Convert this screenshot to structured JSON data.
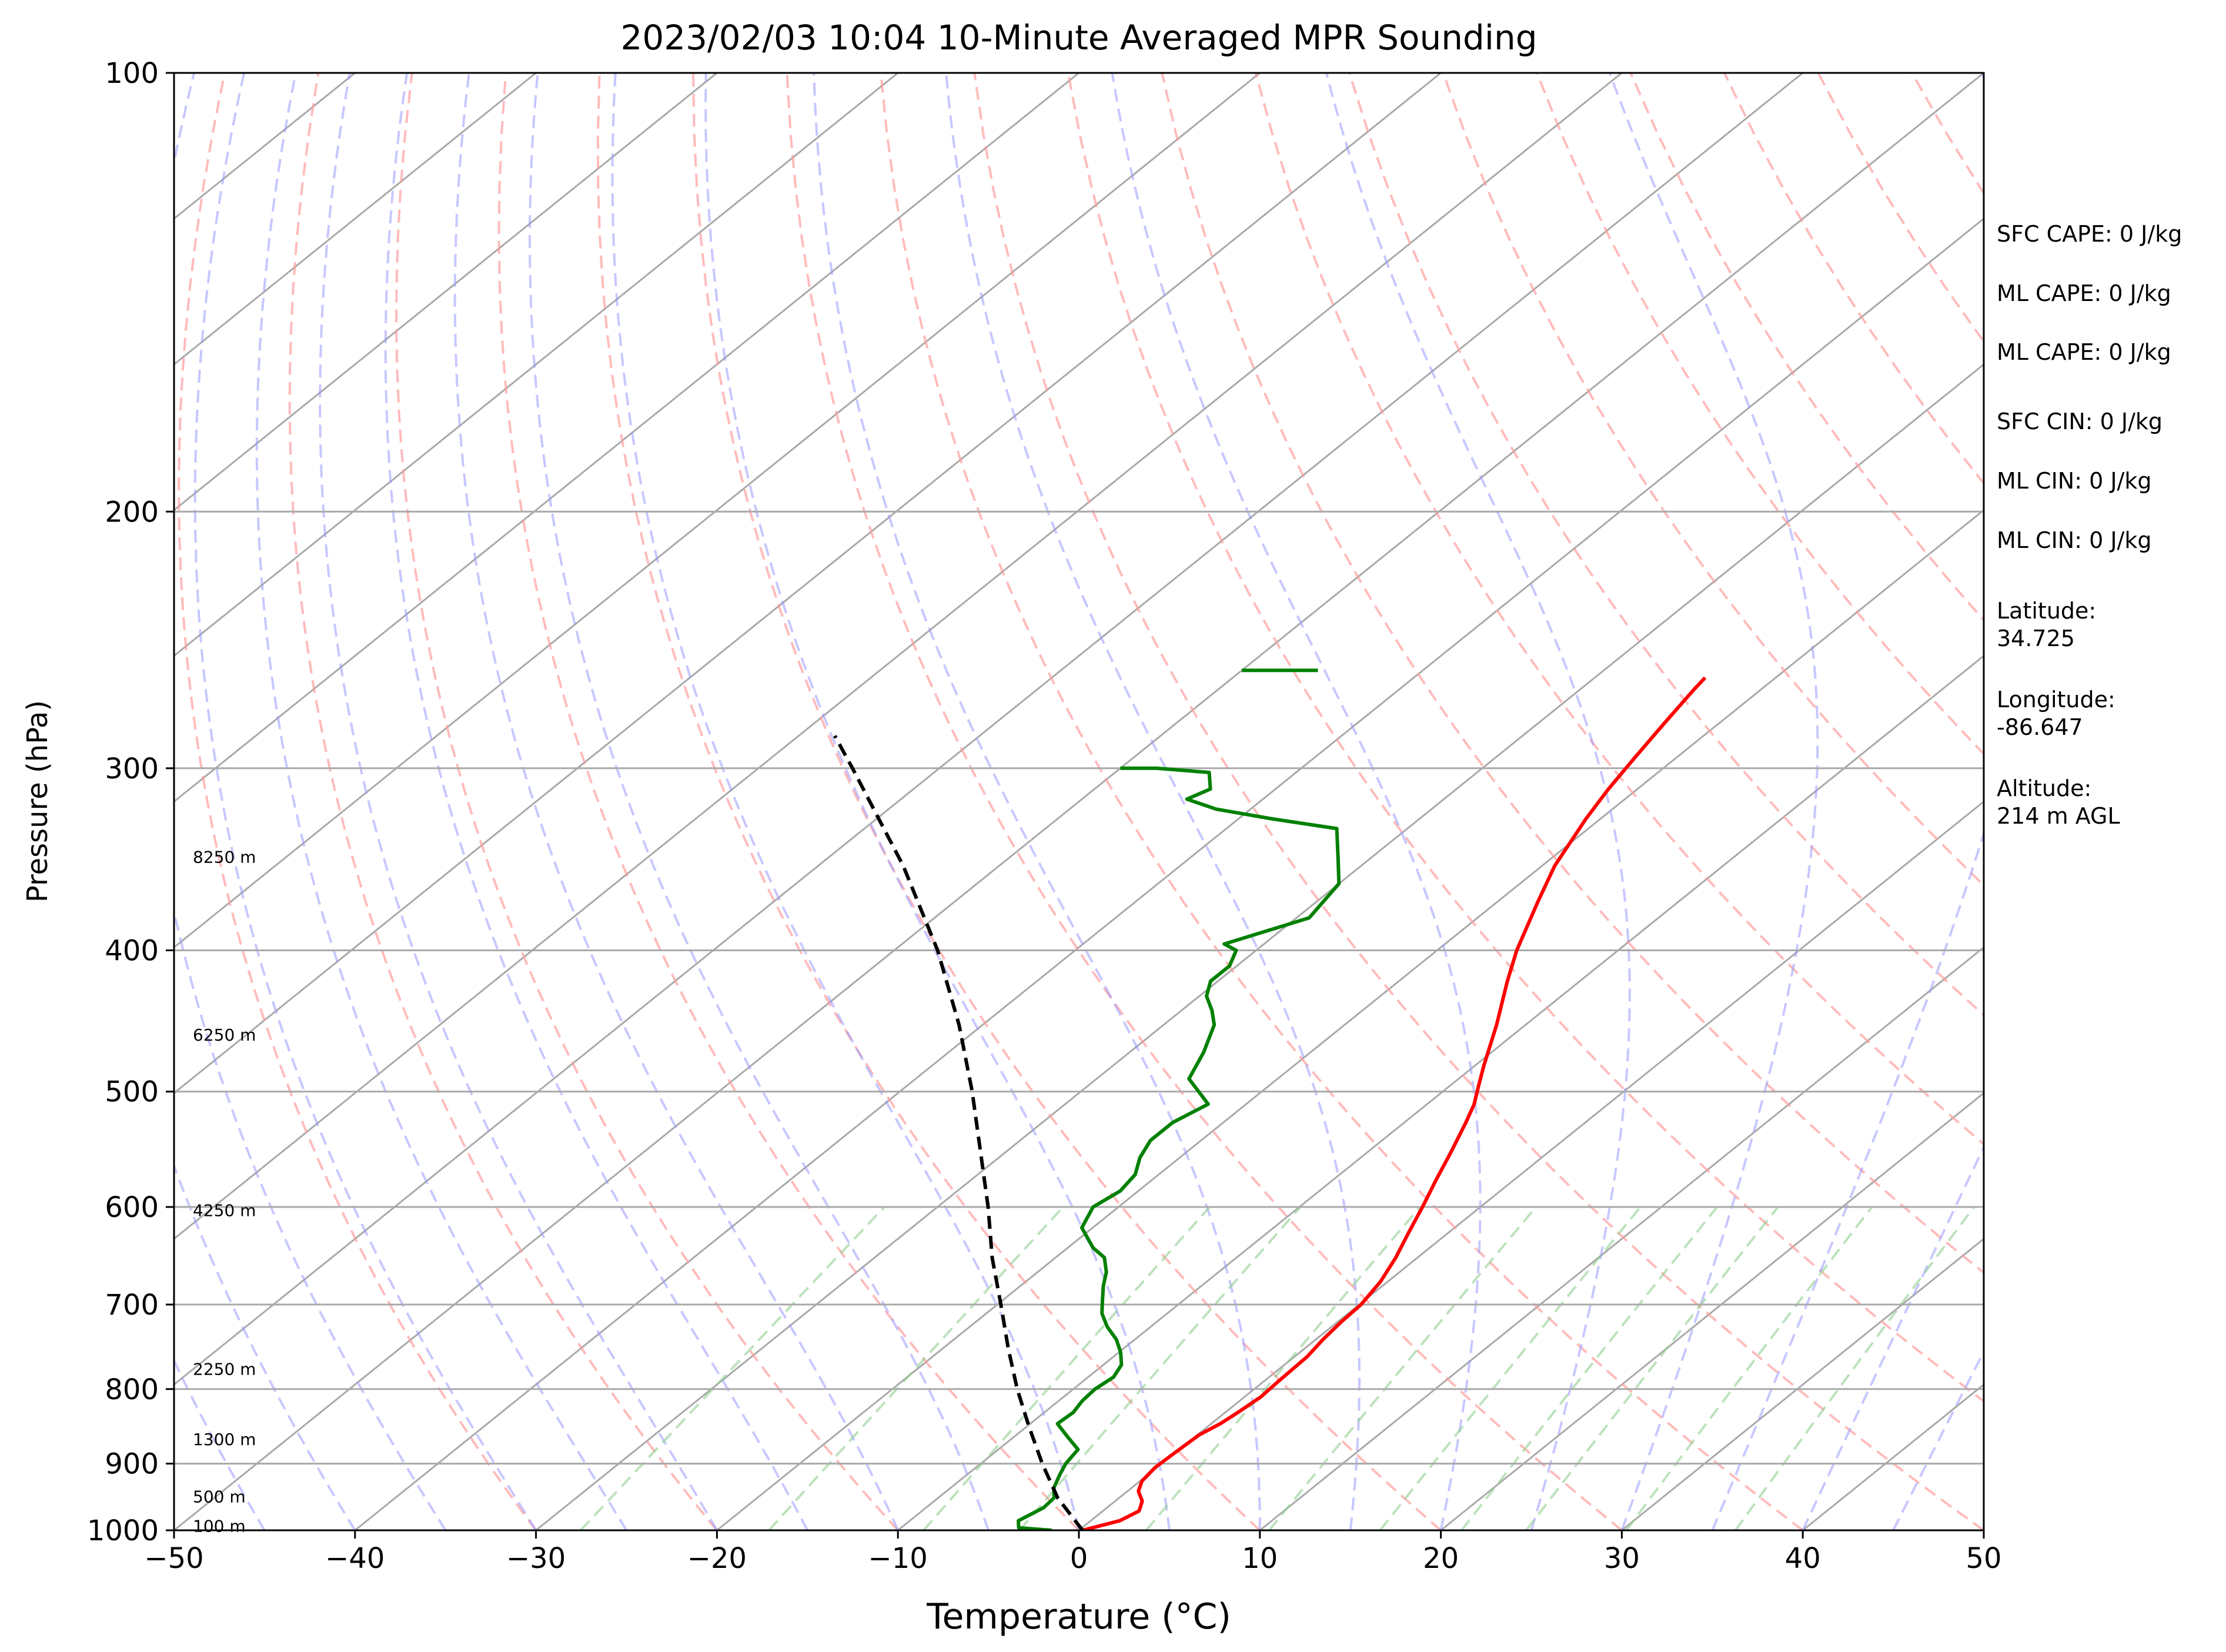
{
  "chart_data": {
    "type": "line",
    "subtype": "skew-T log-p sounding",
    "title": "2023/02/03 10:04 10-Minute Averaged MPR Sounding",
    "xlabel": "Temperature (°C)",
    "ylabel": "Pressure (hPa)",
    "xlim": [
      -50,
      50
    ],
    "ylim": [
      1000,
      100
    ],
    "yscale": "log",
    "grid": true,
    "x_ticks": [
      -50,
      -40,
      -30,
      -20,
      -10,
      0,
      10,
      20,
      30,
      40,
      50
    ],
    "x_tick_labels": [
      "−50",
      "−40",
      "−30",
      "−20",
      "−10",
      "0",
      "10",
      "20",
      "30",
      "40",
      "50"
    ],
    "y_ticks": [
      1000,
      900,
      800,
      700,
      600,
      500,
      400,
      300,
      200,
      100
    ],
    "y_tick_labels": [
      "1000",
      "900",
      "800",
      "700",
      "600",
      "500",
      "400",
      "300",
      "200",
      "100"
    ],
    "series": [
      {
        "role": "temperature",
        "color": "#ff0000",
        "points": [
          [
            1000,
            0.2
          ],
          [
            985,
            1.6
          ],
          [
            970,
            2.0
          ],
          [
            955,
            1.5
          ],
          [
            940,
            0.6
          ],
          [
            925,
            0.1
          ],
          [
            905,
            -0.1
          ],
          [
            880,
            0.0
          ],
          [
            860,
            0.1
          ],
          [
            845,
            0.5
          ],
          [
            830,
            0.7
          ],
          [
            810,
            0.9
          ],
          [
            790,
            0.8
          ],
          [
            760,
            0.7
          ],
          [
            740,
            0.4
          ],
          [
            720,
            0.2
          ],
          [
            700,
            0.1
          ],
          [
            675,
            -0.4
          ],
          [
            650,
            -1.2
          ],
          [
            625,
            -2.2
          ],
          [
            600,
            -3.2
          ],
          [
            575,
            -4.3
          ],
          [
            550,
            -5.4
          ],
          [
            525,
            -6.6
          ],
          [
            510,
            -7.4
          ],
          [
            500,
            -8.1
          ],
          [
            480,
            -9.5
          ],
          [
            450,
            -11.6
          ],
          [
            420,
            -14.0
          ],
          [
            400,
            -15.6
          ],
          [
            370,
            -17.8
          ],
          [
            350,
            -19.3
          ],
          [
            325,
            -20.8
          ],
          [
            310,
            -21.6
          ],
          [
            295,
            -22.3
          ],
          [
            280,
            -23.0
          ],
          [
            265,
            -23.7
          ],
          [
            260,
            -23.9
          ]
        ]
      },
      {
        "role": "dewpoint",
        "color": "#008000",
        "points": [
          [
            1000,
            -1.5
          ],
          [
            996,
            -3.5
          ],
          [
            985,
            -4.0
          ],
          [
            965,
            -3.5
          ],
          [
            950,
            -3.6
          ],
          [
            935,
            -4.3
          ],
          [
            915,
            -4.9
          ],
          [
            900,
            -5.3
          ],
          [
            880,
            -5.6
          ],
          [
            862,
            -7.1
          ],
          [
            845,
            -8.5
          ],
          [
            830,
            -8.4
          ],
          [
            815,
            -8.7
          ],
          [
            800,
            -8.8
          ],
          [
            785,
            -8.6
          ],
          [
            770,
            -9.0
          ],
          [
            755,
            -9.9
          ],
          [
            740,
            -11.0
          ],
          [
            725,
            -12.4
          ],
          [
            710,
            -13.6
          ],
          [
            700,
            -14.2
          ],
          [
            680,
            -15.4
          ],
          [
            665,
            -16.2
          ],
          [
            650,
            -17.3
          ],
          [
            640,
            -18.6
          ],
          [
            620,
            -20.6
          ],
          [
            600,
            -21.4
          ],
          [
            585,
            -21.0
          ],
          [
            570,
            -21.3
          ],
          [
            555,
            -22.2
          ],
          [
            540,
            -22.8
          ],
          [
            525,
            -22.8
          ],
          [
            510,
            -22.1
          ],
          [
            490,
            -24.9
          ],
          [
            470,
            -25.9
          ],
          [
            450,
            -27.2
          ],
          [
            440,
            -28.3
          ],
          [
            430,
            -29.6
          ],
          [
            420,
            -30.4
          ],
          [
            410,
            -30.4
          ],
          [
            400,
            -31.1
          ],
          [
            396,
            -32.2
          ],
          [
            380,
            -29.3
          ],
          [
            360,
            -30.0
          ],
          [
            345,
            -31.9
          ],
          [
            330,
            -33.9
          ],
          [
            325,
            -38.1
          ],
          [
            320,
            -41.9
          ],
          [
            315,
            -44.2
          ],
          [
            310,
            -43.6
          ],
          [
            302,
            -44.8
          ],
          [
            300,
            -48.0
          ],
          [
            300,
            -50.0
          ]
        ]
      },
      {
        "role": "dewpoint-upper-segment",
        "color": "#008000",
        "points": [
          [
            257,
            -50.0
          ],
          [
            257,
            -45.8
          ]
        ]
      },
      {
        "role": "parcel",
        "color": "#000000",
        "dashed": true,
        "points": [
          [
            1000,
            0.2
          ],
          [
            950,
            -3.4
          ],
          [
            900,
            -6.6
          ],
          [
            850,
            -9.8
          ],
          [
            800,
            -13.1
          ],
          [
            750,
            -16.4
          ],
          [
            700,
            -19.8
          ],
          [
            650,
            -23.5
          ],
          [
            600,
            -27.2
          ],
          [
            550,
            -31.4
          ],
          [
            500,
            -36.0
          ],
          [
            450,
            -41.3
          ],
          [
            400,
            -47.6
          ],
          [
            350,
            -55.3
          ],
          [
            300,
            -64.8
          ],
          [
            285,
            -68.0
          ]
        ]
      }
    ],
    "height_labels": [
      "100 m",
      "500 m",
      "1300 m",
      "2250 m",
      "4250 m",
      "6250 m",
      "8250 m"
    ],
    "height_label_pressures": [
      993,
      948,
      866,
      775,
      603,
      457,
      345
    ]
  },
  "side_panel": [
    "SFC CAPE: 0 J/kg",
    "ML CAPE: 0 J/kg",
    "ML CAPE: 0 J/kg",
    "SFC CIN: 0 J/kg",
    "ML CIN: 0 J/kg",
    "ML CIN: 0 J/kg",
    "Latitude:\n34.725",
    "Longitude:\n-86.647",
    "Altitude:\n214 m AGL"
  ]
}
